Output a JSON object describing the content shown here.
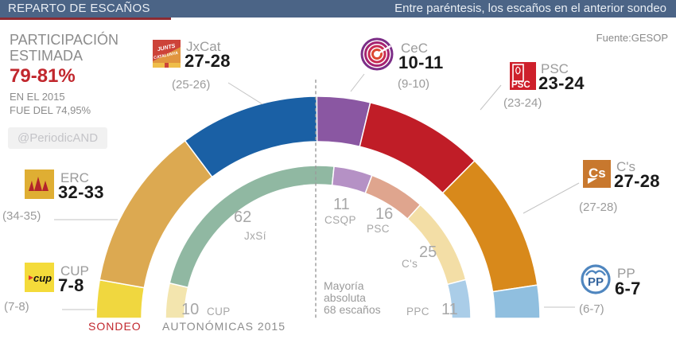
{
  "header": {
    "title": "REPARTO DE ESCAÑOS",
    "subtitle": "Entre paréntesis, los escaños en el anterior sondeo"
  },
  "source": "Fuente:GESOP",
  "handle": "@PeriodicAND",
  "participation": {
    "line1": "PARTICIPACIÓN",
    "line2": "ESTIMADA",
    "value": "79-81%",
    "note1": "EN EL 2015",
    "note2": "FUE DEL 74,95%"
  },
  "colors": {
    "header_bg": "#4B6486",
    "accent_red": "#C1272D",
    "underline_red": "#8D2B32"
  },
  "callouts": {
    "jxcat": {
      "name": "JxCat",
      "range": "27-28",
      "prev": "(25-26)"
    },
    "cec": {
      "name": "CeC",
      "range": "10-11",
      "prev": "(9-10)"
    },
    "psc": {
      "name": "PSC",
      "range": "23-24",
      "prev": "(23-24)"
    },
    "cs": {
      "name": "C's",
      "range": "27-28",
      "prev": "(27-28)"
    },
    "pp": {
      "name": "PP",
      "range": "6-7",
      "prev": "(6-7)"
    },
    "erc": {
      "name": "ERC",
      "range": "32-33",
      "prev": "(34-35)"
    },
    "cup": {
      "name": "CUP",
      "range": "7-8",
      "prev": "(7-8)"
    }
  },
  "logos": {
    "cup_text": "cup",
    "cs_text": "Cs",
    "pp_text": "PP",
    "psc_text": "PSC",
    "jxcat_line1": "JUNTS",
    "jxcat_line2": "CATALUNYA"
  },
  "chart_data": {
    "type": "half_donut",
    "total_seats": 135,
    "majority_seats": 68,
    "majority_label": [
      "Mayoría",
      "absoluta",
      "68 escaños"
    ],
    "rings": [
      {
        "id": "sondeo",
        "label": "SONDEO",
        "series": [
          {
            "party": "CUP",
            "range": "7-8",
            "value": 7.5,
            "color": "#F0D73F"
          },
          {
            "party": "ERC",
            "range": "32-33",
            "value": 32.5,
            "color": "#DCA951"
          },
          {
            "party": "JxCat",
            "range": "27-28",
            "value": 27.5,
            "color": "#1A60A5"
          },
          {
            "party": "CeC",
            "range": "10-11",
            "value": 10.5,
            "color": "#8A57A2"
          },
          {
            "party": "PSC",
            "range": "23-24",
            "value": 23.5,
            "color": "#C01D27"
          },
          {
            "party": "C's",
            "range": "27-28",
            "value": 27.5,
            "color": "#D8891B"
          },
          {
            "party": "PP",
            "range": "6-7",
            "value": 6.5,
            "color": "#90BFDF"
          }
        ]
      },
      {
        "id": "autonomicas2015",
        "label": "AUTONÓMICAS  2015",
        "series": [
          {
            "party": "CUP",
            "value": 10,
            "color": "#F3E5AE"
          },
          {
            "party": "JxSí",
            "value": 62,
            "color": "#90B8A2"
          },
          {
            "party": "CSQP",
            "value": 11,
            "color": "#B591C5"
          },
          {
            "party": "PSC",
            "value": 16,
            "color": "#DFA58E"
          },
          {
            "party": "C's",
            "value": 25,
            "color": "#F3DEA6"
          },
          {
            "party": "PPC",
            "value": 11,
            "color": "#AACDE8"
          }
        ]
      }
    ]
  }
}
